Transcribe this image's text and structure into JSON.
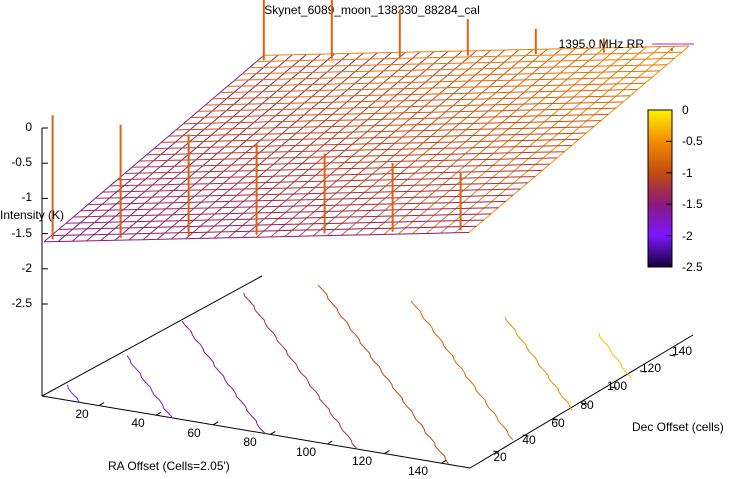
{
  "chart_data": {
    "type": "surface3d",
    "title": "Skynet_6089_moon_138330_88284_cal",
    "xlabel": "RA Offset (Cells=2.05')",
    "ylabel": "Dec Offset (cells)",
    "zlabel": "Intensity (K)",
    "xlim": [
      0,
      150
    ],
    "ylim": [
      0,
      150
    ],
    "zlim": [
      -2.5,
      0
    ],
    "x_ticks": [
      20,
      40,
      60,
      80,
      100,
      120,
      140
    ],
    "y_ticks": [
      20,
      40,
      60,
      80,
      100,
      120,
      140
    ],
    "z_ticks": [
      "0",
      "-0.5",
      "-1",
      "-1.5",
      "-2",
      "-2.5"
    ],
    "legend": {
      "entry": "1395.0 MHz RR",
      "color": "#a020f0",
      "placement": "top-right"
    },
    "colorbar": {
      "ticks": [
        "0",
        "-0.5",
        "-1",
        "-1.5",
        "-2",
        "-2.5"
      ],
      "palette": [
        "#fff200",
        "#f28d00",
        "#c34a10",
        "#8a1a7f",
        "#7b17ff",
        "#170036"
      ]
    },
    "surface": {
      "low_corner_value": -2.1,
      "high_corner_value": 0,
      "spike_value": 0
    },
    "contours": [
      -2.0,
      -1.75,
      -1.5,
      -1.25,
      -1.0,
      -0.75,
      -0.5,
      -0.25
    ]
  }
}
